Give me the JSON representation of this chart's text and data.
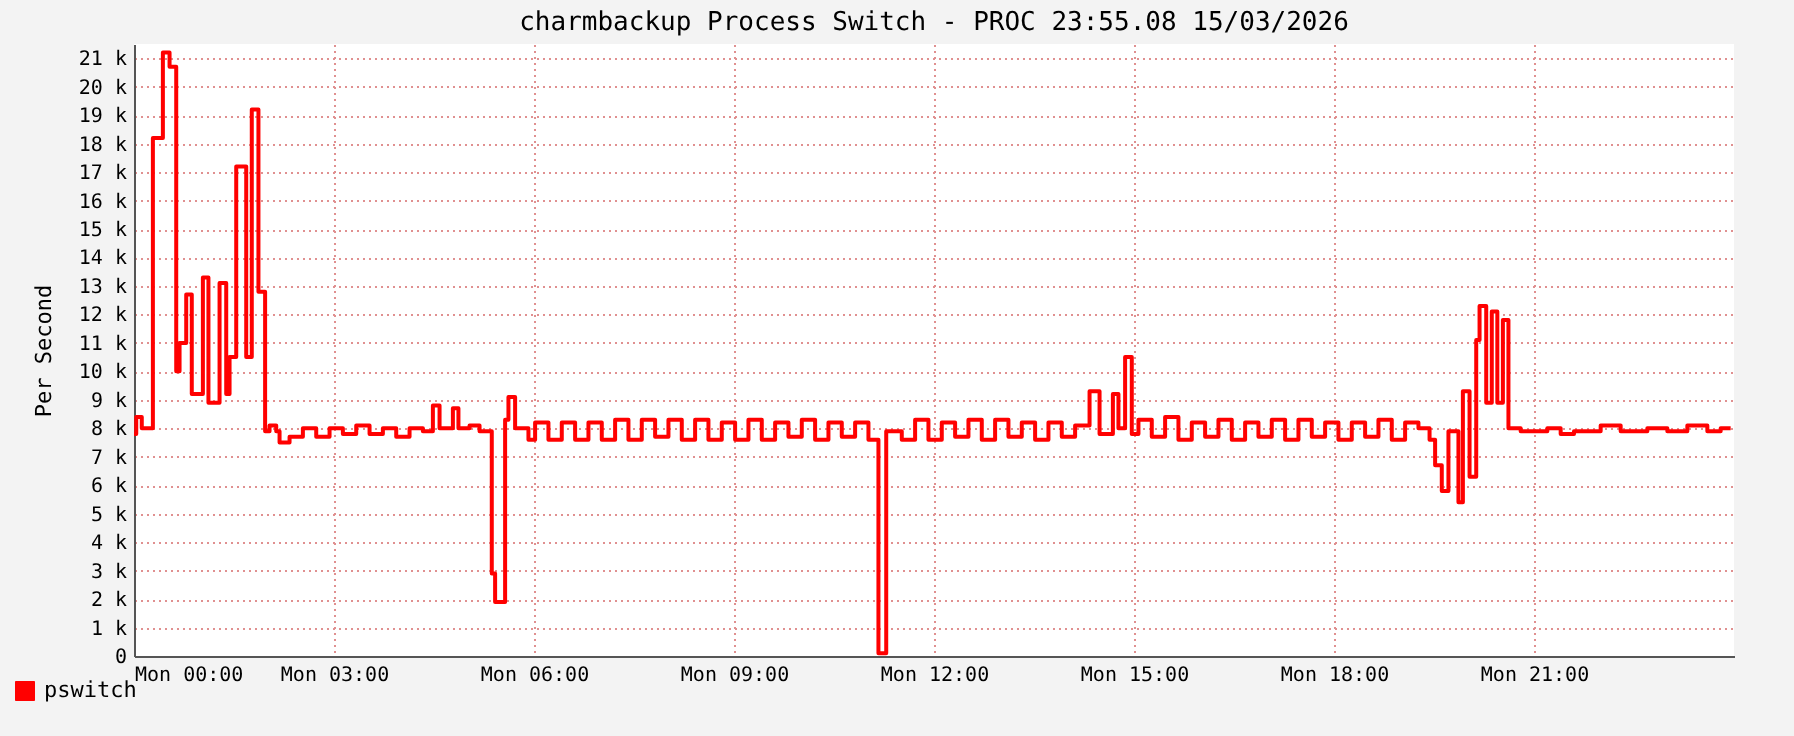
{
  "chart_data": {
    "type": "step",
    "title": "charmbackup Process Switch - PROC 23:55.08 15/03/2026",
    "ylabel": "Per Second",
    "xlim": [
      "2026-03-16T00:00",
      "2026-03-17T00:00"
    ],
    "xticks": [
      {
        "value": "2026-03-16T00:00",
        "label": "Mon 00:00"
      },
      {
        "value": "2026-03-16T03:00",
        "label": "Mon 03:00"
      },
      {
        "value": "2026-03-16T06:00",
        "label": "Mon 06:00"
      },
      {
        "value": "2026-03-16T09:00",
        "label": "Mon 09:00"
      },
      {
        "value": "2026-03-16T12:00",
        "label": "Mon 12:00"
      },
      {
        "value": "2026-03-16T15:00",
        "label": "Mon 15:00"
      },
      {
        "value": "2026-03-16T18:00",
        "label": "Mon 18:00"
      },
      {
        "value": "2026-03-16T21:00",
        "label": "Mon 21:00"
      }
    ],
    "ylim": [
      0,
      21500
    ],
    "yticks": [
      0,
      {
        "value": 1000,
        "label": "1 k"
      },
      {
        "value": 2000,
        "label": "2 k"
      },
      {
        "value": 3000,
        "label": "3 k"
      },
      {
        "value": 4000,
        "label": "4 k"
      },
      {
        "value": 5000,
        "label": "5 k"
      },
      {
        "value": 6000,
        "label": "6 k"
      },
      {
        "value": 7000,
        "label": "7 k"
      },
      {
        "value": 8000,
        "label": "8 k"
      },
      {
        "value": 9000,
        "label": "9 k"
      },
      {
        "value": 10000,
        "label": "10 k"
      },
      {
        "value": 11000,
        "label": "11 k"
      },
      {
        "value": 12000,
        "label": "12 k"
      },
      {
        "value": 13000,
        "label": "13 k"
      },
      {
        "value": 14000,
        "label": "14 k"
      },
      {
        "value": 15000,
        "label": "15 k"
      },
      {
        "value": 16000,
        "label": "16 k"
      },
      {
        "value": 17000,
        "label": "17 k"
      },
      {
        "value": 18000,
        "label": "18 k"
      },
      {
        "value": 19000,
        "label": "19 k"
      },
      {
        "value": 20000,
        "label": "20 k"
      },
      {
        "value": 21000,
        "label": "21 k"
      }
    ],
    "grid": true,
    "legend": "bottom",
    "series": [
      {
        "name": "pswitch",
        "color": "#ff0000",
        "x": [
          "2026-03-16T00:00",
          "2026-03-16T00:02",
          "2026-03-16T00:07",
          "2026-03-16T00:17",
          "2026-03-16T00:26",
          "2026-03-16T00:32",
          "2026-03-16T00:38",
          "2026-03-16T00:41",
          "2026-03-16T00:47",
          "2026-03-16T00:52",
          "2026-03-16T01:02",
          "2026-03-16T01:07",
          "2026-03-16T01:17",
          "2026-03-16T01:23",
          "2026-03-16T01:26",
          "2026-03-16T01:32",
          "2026-03-16T01:41",
          "2026-03-16T01:46",
          "2026-03-16T01:52",
          "2026-03-16T01:58",
          "2026-03-16T02:02",
          "2026-03-16T02:08",
          "2026-03-16T02:11",
          "2026-03-16T02:20",
          "2026-03-16T02:32",
          "2026-03-16T02:44",
          "2026-03-16T02:56",
          "2026-03-16T03:08",
          "2026-03-16T03:20",
          "2026-03-16T03:32",
          "2026-03-16T03:44",
          "2026-03-16T03:56",
          "2026-03-16T04:08",
          "2026-03-16T04:20",
          "2026-03-16T04:29",
          "2026-03-16T04:35",
          "2026-03-16T04:47",
          "2026-03-16T04:52",
          "2026-03-16T05:02",
          "2026-03-16T05:11",
          "2026-03-16T05:22",
          "2026-03-16T05:25",
          "2026-03-16T05:34",
          "2026-03-16T05:37",
          "2026-03-16T05:43",
          "2026-03-16T05:55",
          "2026-03-16T06:01",
          "2026-03-16T06:13",
          "2026-03-16T06:25",
          "2026-03-16T06:37",
          "2026-03-16T06:49",
          "2026-03-16T07:01",
          "2026-03-16T07:13",
          "2026-03-16T07:25",
          "2026-03-16T07:37",
          "2026-03-16T07:49",
          "2026-03-16T08:01",
          "2026-03-16T08:13",
          "2026-03-16T08:25",
          "2026-03-16T08:37",
          "2026-03-16T08:49",
          "2026-03-16T09:01",
          "2026-03-16T09:13",
          "2026-03-16T09:25",
          "2026-03-16T09:37",
          "2026-03-16T09:49",
          "2026-03-16T10:01",
          "2026-03-16T10:13",
          "2026-03-16T10:25",
          "2026-03-16T10:37",
          "2026-03-16T10:49",
          "2026-03-16T11:01",
          "2026-03-16T11:10",
          "2026-03-16T11:17",
          "2026-03-16T11:31",
          "2026-03-16T11:43",
          "2026-03-16T11:55",
          "2026-03-16T12:07",
          "2026-03-16T12:19",
          "2026-03-16T12:31",
          "2026-03-16T12:43",
          "2026-03-16T12:55",
          "2026-03-16T13:07",
          "2026-03-16T13:19",
          "2026-03-16T13:31",
          "2026-03-16T13:43",
          "2026-03-16T13:55",
          "2026-03-16T14:07",
          "2026-03-16T14:20",
          "2026-03-16T14:29",
          "2026-03-16T14:41",
          "2026-03-16T14:46",
          "2026-03-16T14:52",
          "2026-03-16T14:58",
          "2026-03-16T15:04",
          "2026-03-16T15:16",
          "2026-03-16T15:28",
          "2026-03-16T15:40",
          "2026-03-16T15:52",
          "2026-03-16T16:04",
          "2026-03-16T16:16",
          "2026-03-16T16:28",
          "2026-03-16T16:40",
          "2026-03-16T16:52",
          "2026-03-16T17:04",
          "2026-03-16T17:16",
          "2026-03-16T17:28",
          "2026-03-16T17:40",
          "2026-03-16T17:52",
          "2026-03-16T18:04",
          "2026-03-16T18:16",
          "2026-03-16T18:28",
          "2026-03-16T18:40",
          "2026-03-16T18:52",
          "2026-03-16T19:04",
          "2026-03-16T19:16",
          "2026-03-16T19:26",
          "2026-03-16T19:31",
          "2026-03-16T19:37",
          "2026-03-16T19:43",
          "2026-03-16T19:52",
          "2026-03-16T19:56",
          "2026-03-16T20:02",
          "2026-03-16T20:08",
          "2026-03-16T20:11",
          "2026-03-16T20:17",
          "2026-03-16T20:22",
          "2026-03-16T20:27",
          "2026-03-16T20:32",
          "2026-03-16T20:37",
          "2026-03-16T20:48",
          "2026-03-16T21:12",
          "2026-03-16T21:24",
          "2026-03-16T21:36",
          "2026-03-16T22:00",
          "2026-03-16T22:18",
          "2026-03-16T22:42",
          "2026-03-16T23:00",
          "2026-03-16T23:18",
          "2026-03-16T23:36",
          "2026-03-16T23:48",
          "2026-03-16T23:57"
        ],
        "values": [
          7800,
          8400,
          8000,
          18200,
          21200,
          20700,
          10000,
          11000,
          12700,
          9200,
          13300,
          8900,
          13100,
          9200,
          10500,
          17200,
          10500,
          19200,
          12800,
          7900,
          8100,
          7900,
          7500,
          7700,
          8000,
          7700,
          8000,
          7800,
          8100,
          7800,
          8000,
          7700,
          8000,
          7900,
          8800,
          8000,
          8700,
          8000,
          8100,
          7900,
          2900,
          1900,
          8300,
          9100,
          8000,
          7600,
          8200,
          7600,
          8200,
          7600,
          8200,
          7600,
          8300,
          7600,
          8300,
          7700,
          8300,
          7600,
          8300,
          7600,
          8200,
          7600,
          8300,
          7600,
          8200,
          7700,
          8300,
          7600,
          8200,
          7700,
          8200,
          7600,
          100,
          7900,
          7600,
          8300,
          7600,
          8200,
          7700,
          8300,
          7600,
          8300,
          7700,
          8200,
          7600,
          8200,
          7700,
          8100,
          9300,
          7800,
          9200,
          8000,
          10500,
          7800,
          8300,
          7700,
          8400,
          7600,
          8200,
          7700,
          8300,
          7600,
          8200,
          7700,
          8300,
          7600,
          8300,
          7700,
          8200,
          7600,
          8200,
          7700,
          8300,
          7600,
          8200,
          8000,
          7600,
          6700,
          5800,
          7900,
          5400,
          9300,
          6300,
          11100,
          12300,
          8900,
          12100,
          8900,
          11800,
          8000,
          7900,
          8000,
          7800,
          7900,
          8100,
          7900,
          8000,
          7900,
          8100,
          7900,
          8000,
          8000
        ]
      }
    ]
  }
}
